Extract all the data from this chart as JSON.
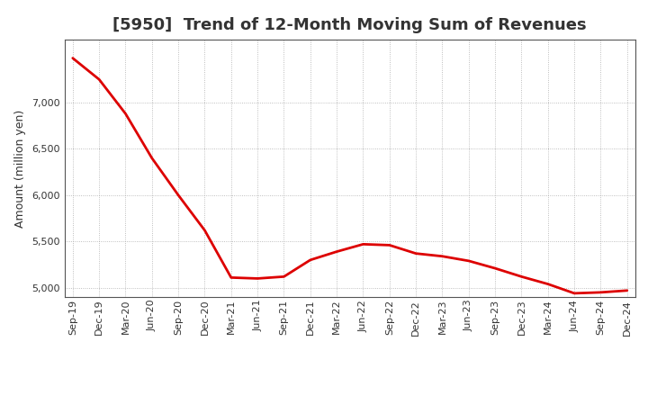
{
  "title": "[5950]  Trend of 12-Month Moving Sum of Revenues",
  "ylabel": "Amount (million yen)",
  "line_color": "#dd0000",
  "line_width": 2.0,
  "background_color": "#ffffff",
  "plot_bg_color": "#ffffff",
  "grid_color": "#999999",
  "ylim": [
    4900,
    7680
  ],
  "yticks": [
    5000,
    5500,
    6000,
    6500,
    7000
  ],
  "x_labels": [
    "Sep-19",
    "Dec-19",
    "Mar-20",
    "Jun-20",
    "Sep-20",
    "Dec-20",
    "Mar-21",
    "Jun-21",
    "Sep-21",
    "Dec-21",
    "Mar-22",
    "Jun-22",
    "Sep-22",
    "Dec-22",
    "Mar-23",
    "Jun-23",
    "Sep-23",
    "Dec-23",
    "Mar-24",
    "Jun-24",
    "Sep-24",
    "Dec-24"
  ],
  "values": [
    7480,
    7250,
    6880,
    6400,
    6000,
    5620,
    5110,
    5100,
    5120,
    5300,
    5390,
    5470,
    5460,
    5370,
    5340,
    5290,
    5210,
    5120,
    5040,
    4940,
    4950,
    4970
  ],
  "title_fontsize": 13,
  "title_color": "#333333",
  "tick_label_color": "#333333",
  "ylabel_fontsize": 9,
  "tick_fontsize": 8.0
}
